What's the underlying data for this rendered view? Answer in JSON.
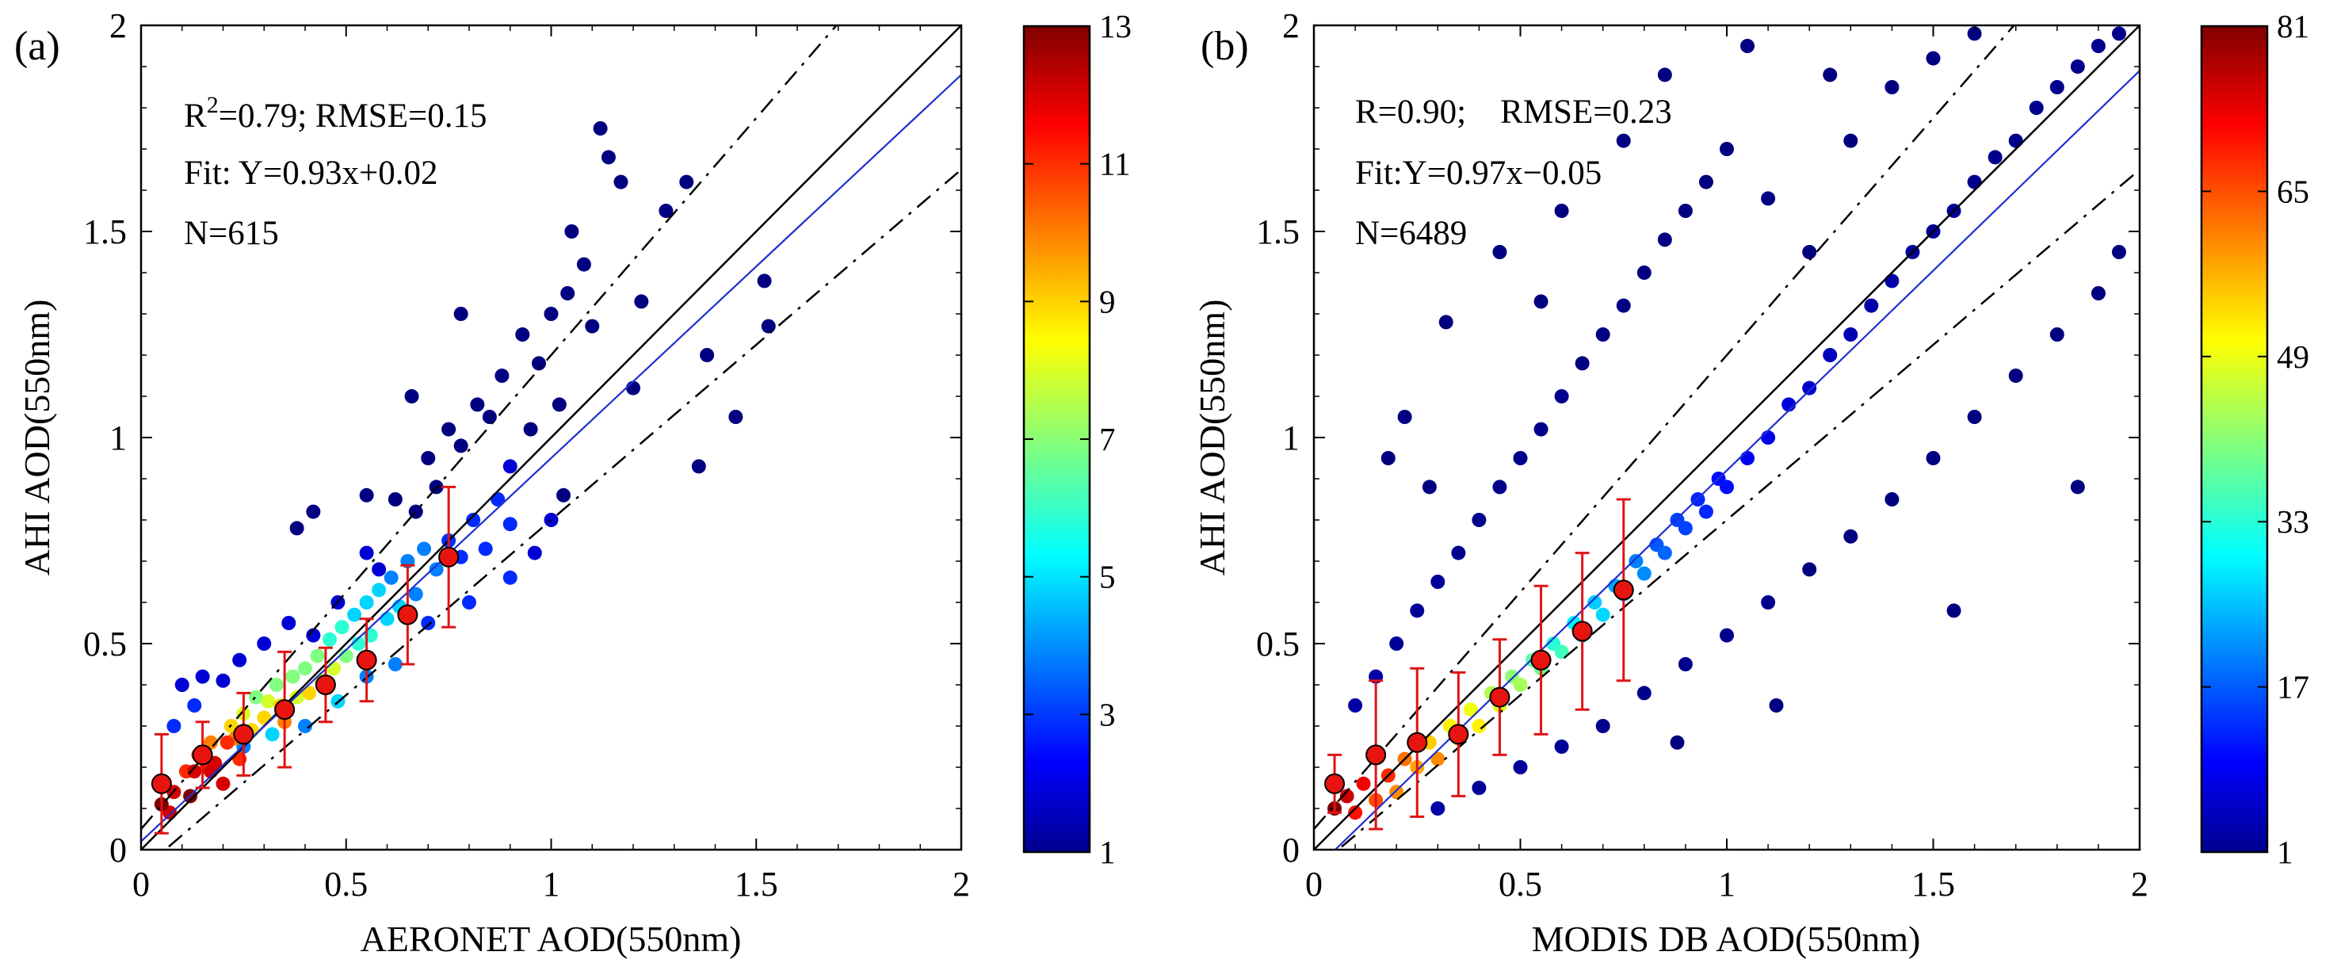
{
  "figure": {
    "panels": [
      {
        "panel_label": "(a)",
        "stats": [
          "R²=0.79; RMSE=0.15",
          "Fit: Y=0.93x+0.02",
          "N=615"
        ],
        "stats_parts": {
          "r_prefix": "R",
          "r_sup": "2",
          "r_rest": "=0.79; RMSE=0.15",
          "fit": "Fit: Y=0.93x+0.02",
          "n": "N=615"
        },
        "colorbar": {
          "labels": [
            "1",
            "3",
            "5",
            "7",
            "9",
            "11",
            "13"
          ],
          "min": 1,
          "max": 13
        }
      },
      {
        "panel_label": "(b)",
        "stats": [
          "R=0.90;    RMSE=0.23",
          "Fit:Y=0.97x−0.05",
          "N=6489"
        ],
        "stats_parts": {
          "r_prefix": "R=0.90;",
          "r_sup": "",
          "r_rest": "    RMSE=0.23",
          "fit": "Fit:Y=0.97x−0.05",
          "n": "N=6489"
        },
        "colorbar": {
          "labels": [
            "1",
            "17",
            "33",
            "49",
            "65",
            "81"
          ],
          "min": 1,
          "max": 81
        }
      }
    ]
  },
  "chart_data": [
    {
      "type": "scatter",
      "title": "",
      "xlabel": "AERONET AOD(550nm)",
      "ylabel": "AHI AOD(550nm)",
      "xlim": [
        0,
        2
      ],
      "ylim": [
        0,
        2
      ],
      "xticks": [
        "0",
        "0.5",
        "1",
        "1.5",
        "2"
      ],
      "yticks": [
        "0",
        "0.5",
        "1",
        "1.5",
        "2"
      ],
      "colormap": "jet",
      "color_range": [
        1,
        13
      ],
      "n": 615,
      "reference_lines": {
        "one_to_one": {
          "slope": 1,
          "intercept": 0
        },
        "envelope_offset": 0.05,
        "envelope_frac": 0.15
      },
      "fit_line": {
        "slope": 0.93,
        "intercept": 0.02,
        "color": "#1f2fd0"
      },
      "bin_means": {
        "x": [
          0.05,
          0.15,
          0.25,
          0.35,
          0.45,
          0.55,
          0.65,
          0.75
        ],
        "y": [
          0.16,
          0.23,
          0.28,
          0.34,
          0.4,
          0.46,
          0.57,
          0.71
        ],
        "err": [
          0.12,
          0.08,
          0.1,
          0.14,
          0.09,
          0.1,
          0.12,
          0.17
        ],
        "marker_color": "#e8140f",
        "error_color": "#e01414"
      },
      "points": [
        [
          0.05,
          0.11,
          13
        ],
        [
          0.07,
          0.09,
          12
        ],
        [
          0.08,
          0.14,
          12
        ],
        [
          0.11,
          0.19,
          11
        ],
        [
          0.12,
          0.13,
          13
        ],
        [
          0.13,
          0.19,
          12
        ],
        [
          0.14,
          0.23,
          11
        ],
        [
          0.16,
          0.2,
          11
        ],
        [
          0.17,
          0.19,
          12
        ],
        [
          0.17,
          0.26,
          10
        ],
        [
          0.18,
          0.21,
          12
        ],
        [
          0.2,
          0.16,
          12
        ],
        [
          0.21,
          0.26,
          11
        ],
        [
          0.22,
          0.3,
          9
        ],
        [
          0.23,
          0.27,
          10
        ],
        [
          0.24,
          0.22,
          11
        ],
        [
          0.25,
          0.33,
          8
        ],
        [
          0.27,
          0.29,
          9
        ],
        [
          0.28,
          0.37,
          7
        ],
        [
          0.3,
          0.32,
          9
        ],
        [
          0.31,
          0.36,
          8
        ],
        [
          0.33,
          0.4,
          7
        ],
        [
          0.34,
          0.35,
          9
        ],
        [
          0.35,
          0.31,
          10
        ],
        [
          0.37,
          0.42,
          7
        ],
        [
          0.38,
          0.37,
          8
        ],
        [
          0.4,
          0.44,
          7
        ],
        [
          0.41,
          0.38,
          9
        ],
        [
          0.43,
          0.47,
          7
        ],
        [
          0.44,
          0.41,
          8
        ],
        [
          0.46,
          0.51,
          6
        ],
        [
          0.47,
          0.44,
          8
        ],
        [
          0.49,
          0.54,
          6
        ],
        [
          0.5,
          0.47,
          7
        ],
        [
          0.52,
          0.57,
          5
        ],
        [
          0.53,
          0.5,
          6
        ],
        [
          0.55,
          0.6,
          5
        ],
        [
          0.56,
          0.52,
          6
        ],
        [
          0.58,
          0.63,
          5
        ],
        [
          0.6,
          0.56,
          5
        ],
        [
          0.61,
          0.66,
          4
        ],
        [
          0.63,
          0.59,
          5
        ],
        [
          0.65,
          0.7,
          4
        ],
        [
          0.67,
          0.62,
          4
        ],
        [
          0.69,
          0.73,
          4
        ],
        [
          0.72,
          0.68,
          4
        ],
        [
          0.75,
          0.75,
          3
        ],
        [
          0.78,
          0.71,
          3
        ],
        [
          0.81,
          0.8,
          3
        ],
        [
          0.84,
          0.73,
          3
        ],
        [
          0.87,
          0.85,
          3
        ],
        [
          0.9,
          0.79,
          3
        ],
        [
          0.08,
          0.3,
          3
        ],
        [
          0.1,
          0.4,
          2
        ],
        [
          0.13,
          0.35,
          3
        ],
        [
          0.15,
          0.42,
          2
        ],
        [
          0.2,
          0.41,
          2
        ],
        [
          0.24,
          0.46,
          2
        ],
        [
          0.3,
          0.5,
          2
        ],
        [
          0.36,
          0.55,
          2
        ],
        [
          0.42,
          0.52,
          2
        ],
        [
          0.48,
          0.6,
          2
        ],
        [
          0.55,
          0.72,
          2
        ],
        [
          0.58,
          0.68,
          2
        ],
        [
          0.62,
          0.85,
          1
        ],
        [
          0.67,
          0.82,
          1
        ],
        [
          0.7,
          0.95,
          1
        ],
        [
          0.72,
          0.88,
          1
        ],
        [
          0.75,
          1.02,
          1
        ],
        [
          0.78,
          0.98,
          1
        ],
        [
          0.82,
          1.08,
          1
        ],
        [
          0.85,
          1.05,
          1
        ],
        [
          0.88,
          1.15,
          1
        ],
        [
          0.9,
          0.93,
          2
        ],
        [
          0.93,
          1.25,
          1
        ],
        [
          0.95,
          1.02,
          1
        ],
        [
          0.97,
          1.18,
          1
        ],
        [
          1.0,
          1.3,
          1
        ],
        [
          1.02,
          1.08,
          1
        ],
        [
          1.04,
          1.35,
          1
        ],
        [
          1.05,
          1.5,
          1
        ],
        [
          1.08,
          1.42,
          1
        ],
        [
          1.1,
          1.27,
          1
        ],
        [
          1.12,
          1.75,
          1
        ],
        [
          1.14,
          1.68,
          1
        ],
        [
          1.17,
          1.62,
          1
        ],
        [
          1.2,
          1.12,
          1
        ],
        [
          1.22,
          1.33,
          1
        ],
        [
          1.28,
          1.55,
          1
        ],
        [
          1.33,
          1.62,
          1
        ],
        [
          1.36,
          0.93,
          1
        ],
        [
          1.38,
          1.2,
          1
        ],
        [
          1.45,
          1.05,
          1
        ],
        [
          1.52,
          1.38,
          1
        ],
        [
          1.53,
          1.27,
          1
        ],
        [
          0.38,
          0.78,
          1
        ],
        [
          0.42,
          0.82,
          1
        ],
        [
          0.55,
          0.86,
          1
        ],
        [
          0.66,
          1.1,
          1
        ],
        [
          0.78,
          1.3,
          1
        ],
        [
          0.25,
          0.25,
          4
        ],
        [
          0.32,
          0.28,
          5
        ],
        [
          0.4,
          0.3,
          4
        ],
        [
          0.48,
          0.36,
          5
        ],
        [
          0.55,
          0.42,
          4
        ],
        [
          0.62,
          0.45,
          4
        ],
        [
          0.7,
          0.55,
          3
        ],
        [
          0.8,
          0.6,
          3
        ],
        [
          0.9,
          0.66,
          3
        ],
        [
          0.96,
          0.72,
          2
        ],
        [
          1.0,
          0.8,
          2
        ],
        [
          1.03,
          0.86,
          1
        ]
      ]
    },
    {
      "type": "scatter",
      "title": "",
      "xlabel": "MODIS DB AOD(550nm)",
      "ylabel": "AHI AOD(550nm)",
      "xlim": [
        0,
        2
      ],
      "ylim": [
        0,
        2
      ],
      "xticks": [
        "0",
        "0.5",
        "1",
        "1.5",
        "2"
      ],
      "yticks": [
        "0",
        "0.5",
        "1",
        "1.5",
        "2"
      ],
      "colormap": "jet",
      "color_range": [
        1,
        81
      ],
      "n": 6489,
      "reference_lines": {
        "one_to_one": {
          "slope": 1,
          "intercept": 0
        },
        "envelope_offset": 0.05,
        "envelope_frac": 0.15
      },
      "fit_line": {
        "slope": 0.97,
        "intercept": -0.05,
        "color": "#1f2fd0"
      },
      "bin_means": {
        "x": [
          0.05,
          0.15,
          0.25,
          0.35,
          0.45,
          0.55,
          0.65,
          0.75
        ],
        "y": [
          0.16,
          0.23,
          0.26,
          0.28,
          0.37,
          0.46,
          0.53,
          0.63
        ],
        "err": [
          0.07,
          0.18,
          0.18,
          0.15,
          0.14,
          0.18,
          0.19,
          0.22
        ],
        "marker_color": "#e8140f",
        "error_color": "#e01414"
      },
      "points": [
        [
          0.05,
          0.1,
          81
        ],
        [
          0.08,
          0.13,
          75
        ],
        [
          0.1,
          0.09,
          70
        ],
        [
          0.12,
          0.16,
          72
        ],
        [
          0.15,
          0.12,
          65
        ],
        [
          0.18,
          0.18,
          68
        ],
        [
          0.2,
          0.14,
          60
        ],
        [
          0.22,
          0.22,
          62
        ],
        [
          0.25,
          0.2,
          58
        ],
        [
          0.28,
          0.26,
          55
        ],
        [
          0.3,
          0.22,
          60
        ],
        [
          0.33,
          0.3,
          52
        ],
        [
          0.35,
          0.27,
          55
        ],
        [
          0.38,
          0.34,
          50
        ],
        [
          0.4,
          0.3,
          52
        ],
        [
          0.43,
          0.38,
          45
        ],
        [
          0.45,
          0.35,
          48
        ],
        [
          0.48,
          0.42,
          42
        ],
        [
          0.5,
          0.4,
          44
        ],
        [
          0.53,
          0.46,
          38
        ],
        [
          0.55,
          0.44,
          40
        ],
        [
          0.58,
          0.5,
          34
        ],
        [
          0.6,
          0.48,
          36
        ],
        [
          0.63,
          0.55,
          30
        ],
        [
          0.65,
          0.52,
          32
        ],
        [
          0.68,
          0.6,
          27
        ],
        [
          0.7,
          0.57,
          28
        ],
        [
          0.73,
          0.64,
          24
        ],
        [
          0.75,
          0.62,
          25
        ],
        [
          0.78,
          0.7,
          21
        ],
        [
          0.8,
          0.67,
          22
        ],
        [
          0.83,
          0.74,
          18
        ],
        [
          0.85,
          0.72,
          19
        ],
        [
          0.88,
          0.8,
          16
        ],
        [
          0.9,
          0.78,
          16
        ],
        [
          0.93,
          0.85,
          14
        ],
        [
          0.95,
          0.82,
          14
        ],
        [
          0.98,
          0.9,
          12
        ],
        [
          1.0,
          0.88,
          12
        ],
        [
          1.05,
          0.95,
          10
        ],
        [
          1.1,
          1.0,
          9
        ],
        [
          1.15,
          1.08,
          8
        ],
        [
          1.2,
          1.12,
          7
        ],
        [
          1.25,
          1.2,
          6
        ],
        [
          1.3,
          1.25,
          5
        ],
        [
          1.35,
          1.32,
          4
        ],
        [
          1.4,
          1.38,
          4
        ],
        [
          1.45,
          1.45,
          3
        ],
        [
          1.5,
          1.5,
          3
        ],
        [
          1.55,
          1.55,
          3
        ],
        [
          1.6,
          1.62,
          2
        ],
        [
          1.65,
          1.68,
          2
        ],
        [
          1.7,
          1.72,
          2
        ],
        [
          1.75,
          1.8,
          2
        ],
        [
          1.8,
          1.85,
          2
        ],
        [
          1.85,
          1.9,
          2
        ],
        [
          1.9,
          1.95,
          2
        ],
        [
          1.95,
          1.98,
          2
        ],
        [
          0.1,
          0.35,
          4
        ],
        [
          0.15,
          0.42,
          4
        ],
        [
          0.2,
          0.5,
          3
        ],
        [
          0.25,
          0.58,
          3
        ],
        [
          0.3,
          0.65,
          3
        ],
        [
          0.35,
          0.72,
          2
        ],
        [
          0.4,
          0.8,
          2
        ],
        [
          0.45,
          0.88,
          2
        ],
        [
          0.5,
          0.95,
          2
        ],
        [
          0.55,
          1.02,
          2
        ],
        [
          0.6,
          1.1,
          2
        ],
        [
          0.65,
          1.18,
          1
        ],
        [
          0.7,
          1.25,
          1
        ],
        [
          0.75,
          1.32,
          1
        ],
        [
          0.8,
          1.4,
          1
        ],
        [
          0.85,
          1.48,
          1
        ],
        [
          0.9,
          1.55,
          1
        ],
        [
          0.95,
          1.62,
          1
        ],
        [
          1.0,
          1.7,
          1
        ],
        [
          1.1,
          1.58,
          1
        ],
        [
          1.2,
          1.45,
          1
        ],
        [
          1.3,
          1.72,
          1
        ],
        [
          1.4,
          1.85,
          1
        ],
        [
          1.5,
          1.92,
          1
        ],
        [
          1.6,
          1.98,
          1
        ],
        [
          0.3,
          0.1,
          4
        ],
        [
          0.4,
          0.15,
          3
        ],
        [
          0.5,
          0.2,
          3
        ],
        [
          0.6,
          0.25,
          3
        ],
        [
          0.7,
          0.3,
          2
        ],
        [
          0.8,
          0.38,
          2
        ],
        [
          0.9,
          0.45,
          2
        ],
        [
          1.0,
          0.52,
          2
        ],
        [
          1.1,
          0.6,
          2
        ],
        [
          1.2,
          0.68,
          1
        ],
        [
          1.3,
          0.76,
          1
        ],
        [
          1.4,
          0.85,
          1
        ],
        [
          1.5,
          0.95,
          1
        ],
        [
          1.6,
          1.05,
          1
        ],
        [
          1.7,
          1.15,
          1
        ],
        [
          1.8,
          1.25,
          1
        ],
        [
          1.9,
          1.35,
          1
        ],
        [
          1.95,
          1.45,
          1
        ],
        [
          0.18,
          0.95,
          1
        ],
        [
          0.22,
          1.05,
          1
        ],
        [
          0.28,
          0.88,
          1
        ],
        [
          0.32,
          1.28,
          1
        ],
        [
          0.45,
          1.45,
          1
        ],
        [
          0.55,
          1.33,
          1
        ],
        [
          0.6,
          1.55,
          1
        ],
        [
          0.75,
          1.72,
          1
        ],
        [
          0.85,
          1.88,
          1
        ],
        [
          1.05,
          1.95,
          1
        ],
        [
          1.25,
          1.88,
          1
        ],
        [
          1.55,
          0.58,
          1
        ],
        [
          1.85,
          0.88,
          1
        ],
        [
          1.12,
          0.35,
          1
        ],
        [
          0.88,
          0.26,
          1
        ]
      ]
    }
  ]
}
